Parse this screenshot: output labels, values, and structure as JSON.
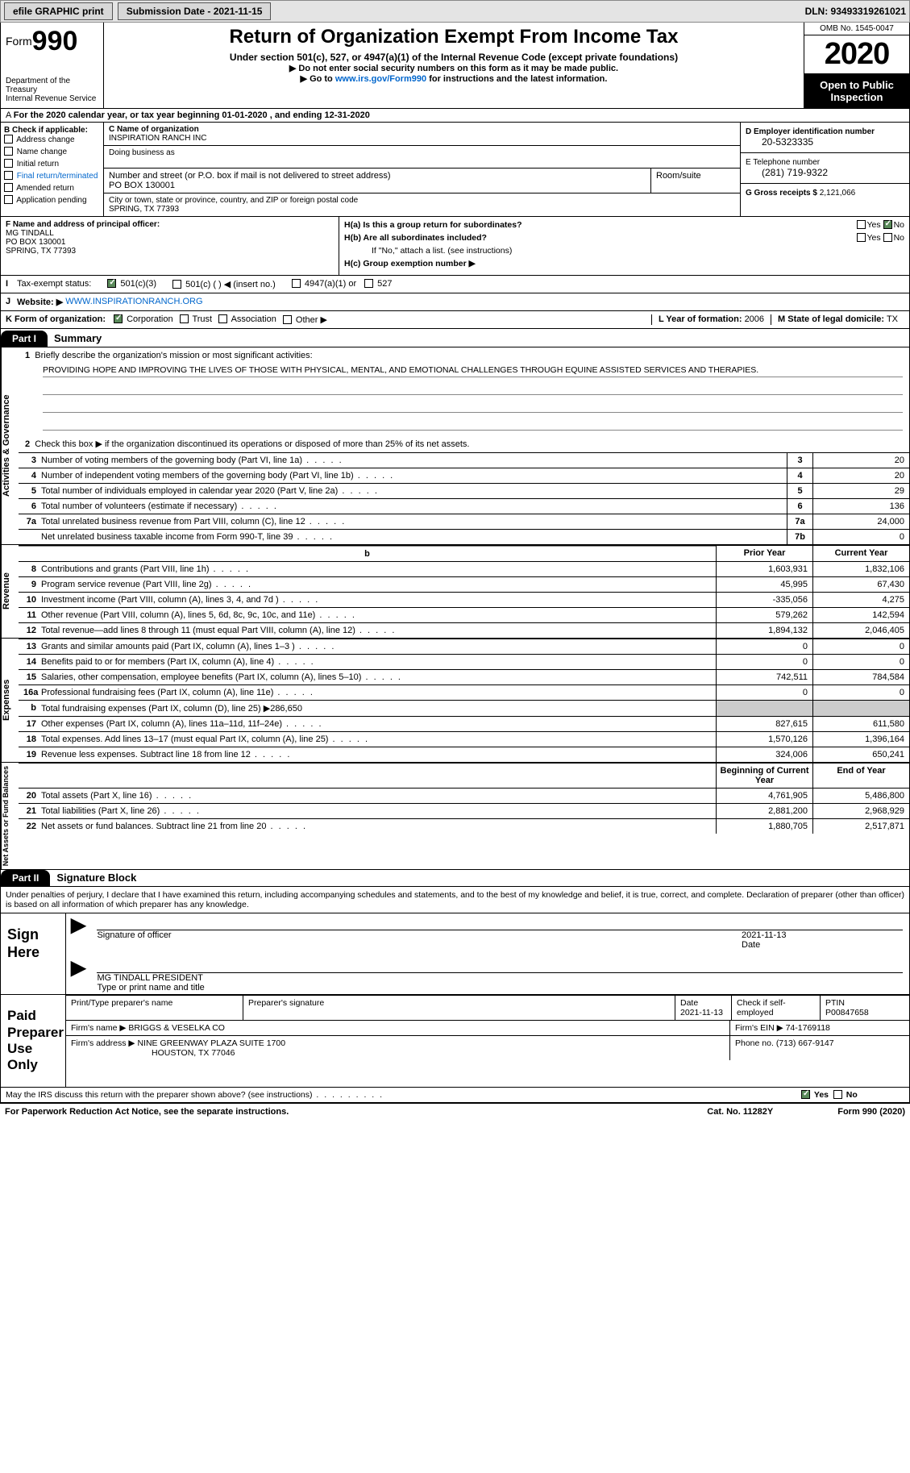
{
  "colors": {
    "link": "#0066cc",
    "checked": "#5a8a5a",
    "shade": "#cccccc",
    "black": "#000000"
  },
  "topbar": {
    "efile": "efile GRAPHIC print",
    "subdate_label": "Submission Date - 2021-11-15",
    "dln": "DLN: 93493319261021"
  },
  "header": {
    "form_prefix": "Form",
    "form_no": "990",
    "dept": "Department of the Treasury\nInternal Revenue Service",
    "title": "Return of Organization Exempt From Income Tax",
    "sub1": "Under section 501(c), 527, or 4947(a)(1) of the Internal Revenue Code (except private foundations)",
    "sub2": "▶ Do not enter social security numbers on this form as it may be made public.",
    "sub3_pre": "▶ Go to ",
    "sub3_link": "www.irs.gov/Form990",
    "sub3_post": " for instructions and the latest information.",
    "omb": "OMB No. 1545-0047",
    "year": "2020",
    "open": "Open to Public Inspection"
  },
  "period": "For the 2020 calendar year, or tax year beginning 01-01-2020   , and ending 12-31-2020",
  "colB": {
    "label": "B Check if applicable:",
    "items": [
      "Address change",
      "Name change",
      "Initial return",
      "Final return/terminated",
      "Amended return",
      "Application pending"
    ]
  },
  "colC": {
    "name_label": "C Name of organization",
    "name": "INSPIRATION RANCH INC",
    "dba_label": "Doing business as",
    "addr_label": "Number and street (or P.O. box if mail is not delivered to street address)",
    "room_label": "Room/suite",
    "addr": "PO BOX 130001",
    "city_label": "City or town, state or province, country, and ZIP or foreign postal code",
    "city": "SPRING, TX  77393"
  },
  "colD": {
    "ein_label": "D Employer identification number",
    "ein": "20-5323335",
    "phone_label": "E Telephone number",
    "phone": "(281) 719-9322",
    "gross_label": "G Gross receipts $",
    "gross": "2,121,066"
  },
  "f": {
    "label": "F  Name and address of principal officer:",
    "name": "MG TINDALL",
    "addr1": "PO BOX 130001",
    "addr2": "SPRING, TX  77393"
  },
  "h": {
    "a": "H(a)  Is this a group return for subordinates?",
    "b": "H(b)  Are all subordinates included?",
    "b_note": "If \"No,\" attach a list. (see instructions)",
    "c": "H(c)  Group exemption number ▶",
    "yes": "Yes",
    "no": "No"
  },
  "i": {
    "label": "Tax-exempt status:",
    "o1": "501(c)(3)",
    "o2": "501(c) (  ) ◀ (insert no.)",
    "o3": "4947(a)(1) or",
    "o4": "527"
  },
  "j": {
    "label": "Website: ▶",
    "url": "WWW.INSPIRATIONRANCH.ORG"
  },
  "k": {
    "label": "K Form of organization:",
    "o1": "Corporation",
    "o2": "Trust",
    "o3": "Association",
    "o4": "Other ▶"
  },
  "l": {
    "label": "L Year of formation:",
    "val": "2006"
  },
  "m": {
    "label": "M State of legal domicile:",
    "val": "TX"
  },
  "part1": {
    "part": "Part I",
    "title": "Summary",
    "q1": "Briefly describe the organization's mission or most significant activities:",
    "mission": "PROVIDING HOPE AND IMPROVING THE LIVES OF THOSE WITH PHYSICAL, MENTAL, AND EMOTIONAL CHALLENGES THROUGH EQUINE ASSISTED SERVICES AND THERAPIES.",
    "q2": "Check this box ▶      if the organization discontinued its operations or disposed of more than 25% of its net assets.",
    "sides": {
      "a": "Activities & Governance",
      "r": "Revenue",
      "e": "Expenses",
      "n": "Net Assets or Fund Balances"
    },
    "rows_gov": [
      {
        "n": "3",
        "t": "Number of voting members of the governing body (Part VI, line 1a)",
        "box": "3",
        "v": "20"
      },
      {
        "n": "4",
        "t": "Number of independent voting members of the governing body (Part VI, line 1b)",
        "box": "4",
        "v": "20"
      },
      {
        "n": "5",
        "t": "Total number of individuals employed in calendar year 2020 (Part V, line 2a)",
        "box": "5",
        "v": "29"
      },
      {
        "n": "6",
        "t": "Total number of volunteers (estimate if necessary)",
        "box": "6",
        "v": "136"
      },
      {
        "n": "7a",
        "t": "Total unrelated business revenue from Part VIII, column (C), line 12",
        "box": "7a",
        "v": "24,000"
      },
      {
        "n": "",
        "t": "Net unrelated business taxable income from Form 990-T, line 39",
        "box": "7b",
        "v": "0"
      }
    ],
    "hdr": {
      "py": "Prior Year",
      "cy": "Current Year",
      "bcy": "Beginning of Current Year",
      "eoy": "End of Year"
    },
    "rows_rev": [
      {
        "n": "8",
        "t": "Contributions and grants (Part VIII, line 1h)",
        "py": "1,603,931",
        "cy": "1,832,106"
      },
      {
        "n": "9",
        "t": "Program service revenue (Part VIII, line 2g)",
        "py": "45,995",
        "cy": "67,430"
      },
      {
        "n": "10",
        "t": "Investment income (Part VIII, column (A), lines 3, 4, and 7d )",
        "py": "-335,056",
        "cy": "4,275"
      },
      {
        "n": "11",
        "t": "Other revenue (Part VIII, column (A), lines 5, 6d, 8c, 9c, 10c, and 11e)",
        "py": "579,262",
        "cy": "142,594"
      },
      {
        "n": "12",
        "t": "Total revenue—add lines 8 through 11 (must equal Part VIII, column (A), line 12)",
        "py": "1,894,132",
        "cy": "2,046,405"
      }
    ],
    "rows_exp": [
      {
        "n": "13",
        "t": "Grants and similar amounts paid (Part IX, column (A), lines 1–3 )",
        "py": "0",
        "cy": "0"
      },
      {
        "n": "14",
        "t": "Benefits paid to or for members (Part IX, column (A), line 4)",
        "py": "0",
        "cy": "0"
      },
      {
        "n": "15",
        "t": "Salaries, other compensation, employee benefits (Part IX, column (A), lines 5–10)",
        "py": "742,511",
        "cy": "784,584"
      },
      {
        "n": "16a",
        "t": "Professional fundraising fees (Part IX, column (A), line 11e)",
        "py": "0",
        "cy": "0"
      },
      {
        "n": "b",
        "t": "Total fundraising expenses (Part IX, column (D), line 25) ▶286,650",
        "py": "shade",
        "cy": "shade"
      },
      {
        "n": "17",
        "t": "Other expenses (Part IX, column (A), lines 11a–11d, 11f–24e)",
        "py": "827,615",
        "cy": "611,580"
      },
      {
        "n": "18",
        "t": "Total expenses. Add lines 13–17 (must equal Part IX, column (A), line 25)",
        "py": "1,570,126",
        "cy": "1,396,164"
      },
      {
        "n": "19",
        "t": "Revenue less expenses. Subtract line 18 from line 12",
        "py": "324,006",
        "cy": "650,241"
      }
    ],
    "rows_net": [
      {
        "n": "20",
        "t": "Total assets (Part X, line 16)",
        "py": "4,761,905",
        "cy": "5,486,800"
      },
      {
        "n": "21",
        "t": "Total liabilities (Part X, line 26)",
        "py": "2,881,200",
        "cy": "2,968,929"
      },
      {
        "n": "22",
        "t": "Net assets or fund balances. Subtract line 21 from line 20",
        "py": "1,880,705",
        "cy": "2,517,871"
      }
    ]
  },
  "part2": {
    "part": "Part II",
    "title": "Signature Block",
    "penalties": "Under penalties of perjury, I declare that I have examined this return, including accompanying schedules and statements, and to the best of my knowledge and belief, it is true, correct, and complete. Declaration of preparer (other than officer) is based on all information of which preparer has any knowledge.",
    "sign_label": "Sign Here",
    "sig_officer": "Signature of officer",
    "sig_date": "Date",
    "sig_date_val": "2021-11-13",
    "sig_name": "MG TINDALL  PRESIDENT",
    "sig_type": "Type or print name and title",
    "paid_label": "Paid Preparer Use Only",
    "prep_name_label": "Print/Type preparer's name",
    "prep_sig_label": "Preparer's signature",
    "prep_date_label": "Date",
    "prep_date": "2021-11-13",
    "prep_self": "Check       if self-employed",
    "ptin_label": "PTIN",
    "ptin": "P00847658",
    "firm_name_label": "Firm's name    ▶",
    "firm_name": "BRIGGS & VESELKA CO",
    "firm_ein_label": "Firm's EIN ▶",
    "firm_ein": "74-1769118",
    "firm_addr_label": "Firm's address ▶",
    "firm_addr1": "NINE GREENWAY PLAZA SUITE 1700",
    "firm_addr2": "HOUSTON, TX  77046",
    "firm_phone_label": "Phone no.",
    "firm_phone": "(713) 667-9147",
    "discuss": "May the IRS discuss this return with the preparer shown above? (see instructions)"
  },
  "footer": {
    "pra": "For Paperwork Reduction Act Notice, see the separate instructions.",
    "cat": "Cat. No. 11282Y",
    "form": "Form 990 (2020)"
  }
}
